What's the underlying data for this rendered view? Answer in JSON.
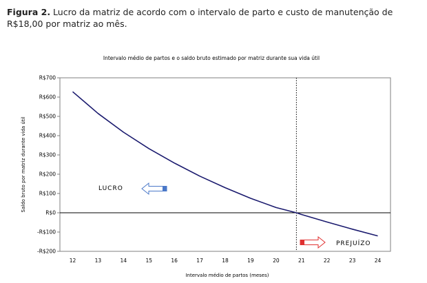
{
  "figure_caption": {
    "label": "Figura 2.",
    "text": " Lucro da matriz de acordo com o intervalo de parto e custo de manutenção de R$18,00 por matriz ao mês."
  },
  "chart_data": {
    "type": "line",
    "title": "Intervalo médio de partos e o saldo bruto estimado por matriz durante sua vida útil",
    "xlabel": "Intervalo médio de partos (meses)",
    "ylabel": "Saldo bruto por matriz durante vida útil",
    "xlim": [
      11.5,
      24.5
    ],
    "ylim": [
      -200,
      700
    ],
    "x_ticks": [
      12,
      13,
      14,
      15,
      16,
      17,
      18,
      19,
      20,
      21,
      22,
      23,
      24
    ],
    "x_tick_labels": [
      "12",
      "13",
      "14",
      "15",
      "16",
      "17",
      "18",
      "19",
      "20",
      "21",
      "22",
      "23",
      "24"
    ],
    "y_ticks": [
      -200,
      -100,
      0,
      100,
      200,
      300,
      400,
      500,
      600,
      700
    ],
    "y_tick_labels": [
      "-R$200",
      "-R$100",
      "R$0",
      "R$100",
      "R$200",
      "R$300",
      "R$400",
      "R$500",
      "R$600",
      "R$700"
    ],
    "series": [
      {
        "color": "#1a1a6e",
        "x": [
          12,
          13,
          14,
          15,
          16,
          17,
          18,
          19,
          20,
          20.8,
          21,
          22,
          23,
          24
        ],
        "y": [
          628,
          515,
          418,
          333,
          258,
          190,
          130,
          75,
          27,
          0,
          -9,
          -48,
          -85,
          -120
        ]
      }
    ],
    "reference_line": {
      "x": 20.8,
      "style": "dotted"
    },
    "grid": false,
    "annotations": {
      "profit_label": "LUCRO",
      "loss_label": "PREJUÍZO",
      "profit_arrow_color": "#4a78c8",
      "loss_arrow_color": "#e03030"
    }
  }
}
